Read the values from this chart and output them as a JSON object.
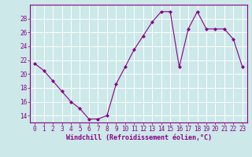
{
  "x": [
    0,
    1,
    2,
    3,
    4,
    5,
    6,
    7,
    8,
    9,
    10,
    11,
    12,
    13,
    14,
    15,
    16,
    17,
    18,
    19,
    20,
    21,
    22,
    23
  ],
  "y": [
    21.5,
    20.5,
    19.0,
    17.5,
    16.0,
    15.0,
    13.5,
    13.5,
    14.0,
    18.5,
    21.0,
    23.5,
    25.5,
    27.5,
    29.0,
    29.0,
    21.0,
    26.5,
    29.0,
    26.5,
    26.5,
    26.5,
    25.0,
    21.0
  ],
  "xlim": [
    -0.5,
    23.5
  ],
  "ylim": [
    13.0,
    30.0
  ],
  "yticks": [
    14,
    16,
    18,
    20,
    22,
    24,
    26,
    28
  ],
  "xticks": [
    0,
    1,
    2,
    3,
    4,
    5,
    6,
    7,
    8,
    9,
    10,
    11,
    12,
    13,
    14,
    15,
    16,
    17,
    18,
    19,
    20,
    21,
    22,
    23
  ],
  "xlabel": "Windchill (Refroidissement éolien,°C)",
  "line_color": "#880088",
  "marker": "D",
  "marker_size": 2.0,
  "bg_color": "#cce8e8",
  "grid_color": "#ffffff",
  "tick_color": "#880088",
  "label_color": "#880088",
  "spine_color": "#880088",
  "tick_fontsize": 5.5,
  "xlabel_fontsize": 6.0
}
